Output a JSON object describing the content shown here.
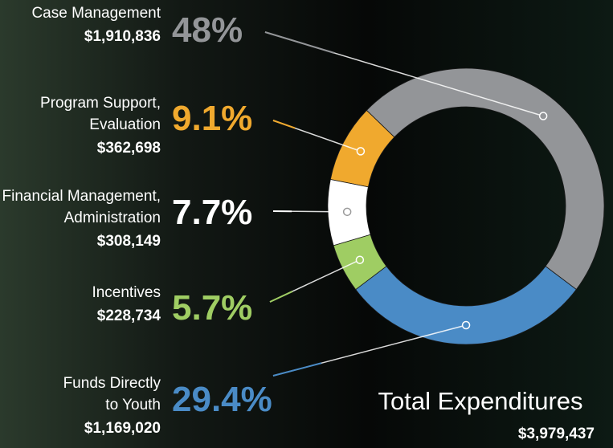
{
  "chart_data": {
    "type": "pie",
    "categories": [
      [
        "Case Management"
      ],
      [
        "Program Support,",
        "Evaluation"
      ],
      [
        "Financial Management,",
        "Administration"
      ],
      [
        "Incentives"
      ],
      [
        "Funds Directly",
        "to Youth"
      ]
    ],
    "values": [
      48,
      9.1,
      7.7,
      5.7,
      29.4
    ],
    "value_labels": [
      "48%",
      "9.1%",
      "7.7%",
      "5.7%",
      "29.4%"
    ],
    "amounts": [
      "$1,910,836",
      "$362,698",
      "$308,149",
      "$228,734",
      "$1,169,020"
    ],
    "colors": [
      "#939598",
      "#f0a92e",
      "#ffffff",
      "#9fcd63",
      "#4a8bc6"
    ],
    "total_label": "Total Expenditures",
    "total_amount": "$3,979,437"
  }
}
